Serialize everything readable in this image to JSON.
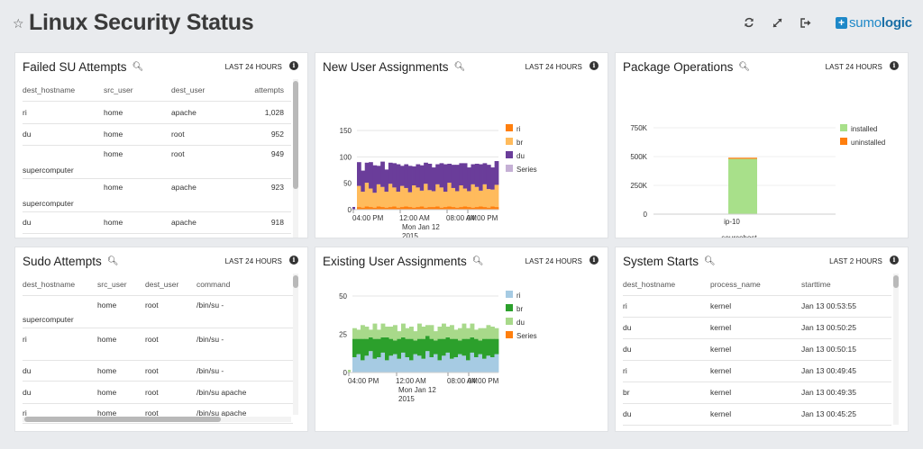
{
  "header": {
    "title": "Linux Security Status",
    "star_icon": "star-icon",
    "refresh_icon": "refresh-icon",
    "expand_icon": "expand-icon",
    "exit_icon": "exit-icon",
    "logo": {
      "prefix": "sumo",
      "suffix": "logic"
    }
  },
  "panels": {
    "failed_su": {
      "title": "Failed SU Attempts",
      "range": "LAST 24 HOURS",
      "columns": [
        "dest_hostname",
        "src_user",
        "dest_user",
        "attempts"
      ],
      "rows": [
        [
          "ri",
          "home",
          "apache",
          "1,028"
        ],
        [
          "du",
          "home",
          "root",
          "952"
        ],
        [
          "supercomputer",
          "home",
          "root",
          "949"
        ],
        [
          "supercomputer",
          "home",
          "apache",
          "923"
        ],
        [
          "du",
          "home",
          "apache",
          "918"
        ]
      ]
    },
    "new_user": {
      "title": "New User Assignments",
      "range": "LAST 24 HOURS",
      "legend": [
        "ri",
        "br",
        "du",
        "Series"
      ]
    },
    "package_ops": {
      "title": "Package Operations",
      "range": "LAST 24 HOURS",
      "legend": [
        "installed",
        "uninstalled"
      ]
    },
    "sudo": {
      "title": "Sudo Attempts",
      "range": "LAST 24 HOURS",
      "columns": [
        "dest_hostname",
        "src_user",
        "dest_user",
        "command"
      ],
      "rows": [
        [
          "supercomputer",
          "home",
          "root",
          "/bin/su -"
        ],
        [
          "ri",
          "home",
          "root",
          "/bin/su -"
        ],
        [
          "du",
          "home",
          "root",
          "/bin/su -"
        ],
        [
          "du",
          "home",
          "root",
          "/bin/su apache"
        ],
        [
          "ri",
          "home",
          "root",
          "/bin/su apache"
        ]
      ]
    },
    "existing_user": {
      "title": "Existing User Assignments",
      "range": "LAST 24 HOURS",
      "legend": [
        "ri",
        "br",
        "du",
        "Series"
      ]
    },
    "system_starts": {
      "title": "System Starts",
      "range": "LAST 2 HOURS",
      "columns": [
        "dest_hostname",
        "process_name",
        "starttime"
      ],
      "rows": [
        [
          "ri",
          "kernel",
          "Jan 13 00:53:55"
        ],
        [
          "du",
          "kernel",
          "Jan 13 00:50:25"
        ],
        [
          "du",
          "kernel",
          "Jan 13 00:50:15"
        ],
        [
          "ri",
          "kernel",
          "Jan 13 00:49:45"
        ],
        [
          "br",
          "kernel",
          "Jan 13 00:49:35"
        ],
        [
          "du",
          "kernel",
          "Jan 13 00:45:25"
        ]
      ]
    }
  },
  "colors": {
    "ri_orange": "#ff7f0e",
    "br_light_orange": "#ffbb5c",
    "du_purple": "#6a3d9a",
    "series_lavender": "#c5b0d5",
    "ri_light_blue": "#a6cbe3",
    "br_green": "#2ca02c",
    "du_light_green": "#a8d98a",
    "installed": "#a8e08a",
    "uninstalled": "#ff7f0e"
  },
  "chart_data": [
    {
      "type": "area",
      "title": "New User Assignments",
      "stacked": true,
      "x_ticks": [
        "04:00 PM",
        "12:00 AM",
        "08:00 AM",
        "04:00 PM"
      ],
      "x_date_label": [
        "Mon Jan 12",
        "2015"
      ],
      "y_ticks": [
        0,
        50,
        100,
        150
      ],
      "ylim": [
        0,
        150
      ],
      "series": [
        {
          "name": "ri",
          "values": [
            5,
            4,
            6,
            5,
            4,
            6,
            5,
            4,
            5,
            6,
            4,
            5,
            6,
            5,
            4,
            5,
            6,
            4,
            5,
            5,
            6,
            4,
            5,
            6,
            5,
            4,
            5,
            6,
            5,
            4,
            5,
            6,
            5,
            4,
            6,
            5
          ]
        },
        {
          "name": "br",
          "values": [
            40,
            30,
            45,
            35,
            28,
            42,
            38,
            30,
            44,
            36,
            30,
            40,
            35,
            28,
            42,
            37,
            30,
            45,
            32,
            30,
            42,
            38,
            29,
            45,
            36,
            31,
            41,
            34,
            30,
            44,
            38,
            30,
            43,
            35,
            32,
            42
          ]
        },
        {
          "name": "du",
          "values": [
            45,
            40,
            38,
            50,
            52,
            35,
            48,
            42,
            40,
            46,
            52,
            38,
            45,
            50,
            36,
            44,
            48,
            40,
            50,
            45,
            38,
            46,
            52,
            36,
            44,
            50,
            42,
            48,
            45,
            38,
            44,
            50,
            40,
            46,
            42,
            45
          ]
        },
        {
          "name": "Series",
          "values": [
            0,
            0,
            0,
            0,
            0,
            0,
            0,
            0,
            0,
            0,
            0,
            0,
            0,
            0,
            0,
            0,
            0,
            0,
            0,
            0,
            0,
            0,
            0,
            0,
            0,
            0,
            0,
            0,
            0,
            0,
            0,
            0,
            0,
            0,
            0,
            0
          ]
        }
      ]
    },
    {
      "type": "bar",
      "title": "Package Operations",
      "stacked": true,
      "categories": [
        "ip-10"
      ],
      "xlabel": "sourcehost",
      "y_ticks": [
        "0",
        "250K",
        "500K",
        "750K"
      ],
      "ylim": [
        0,
        750000
      ],
      "series": [
        {
          "name": "installed",
          "values": [
            480000
          ]
        },
        {
          "name": "uninstalled",
          "values": [
            10000
          ]
        }
      ]
    },
    {
      "type": "area",
      "title": "Existing User Assignments",
      "stacked": true,
      "x_ticks": [
        "04:00 PM",
        "12:00 AM",
        "08:00 AM",
        "04:00 PM"
      ],
      "x_date_label": [
        "Mon Jan 12",
        "2015"
      ],
      "y_ticks": [
        0,
        25,
        50
      ],
      "ylim": [
        0,
        50
      ],
      "series": [
        {
          "name": "ri",
          "values": [
            10,
            12,
            8,
            11,
            14,
            9,
            10,
            13,
            8,
            11,
            12,
            9,
            13,
            10,
            8,
            12,
            11,
            9,
            14,
            10,
            12,
            8,
            11,
            13,
            9,
            10,
            12,
            11,
            8,
            13,
            10,
            12,
            9,
            11,
            10,
            12
          ]
        },
        {
          "name": "br",
          "values": [
            12,
            10,
            14,
            11,
            9,
            13,
            12,
            10,
            15,
            11,
            9,
            13,
            10,
            12,
            14,
            9,
            11,
            13,
            10,
            12,
            9,
            14,
            11,
            10,
            13,
            12,
            9,
            11,
            14,
            10,
            12,
            9,
            13,
            11,
            12,
            10
          ]
        },
        {
          "name": "du",
          "values": [
            7,
            6,
            9,
            8,
            5,
            10,
            6,
            9,
            7,
            8,
            10,
            5,
            9,
            7,
            8,
            6,
            10,
            8,
            7,
            9,
            6,
            8,
            10,
            7,
            9,
            6,
            8,
            10,
            7,
            9,
            6,
            8,
            7,
            9,
            8,
            7
          ]
        },
        {
          "name": "Series",
          "values": [
            0,
            0,
            0,
            0,
            0,
            0,
            0,
            0,
            0,
            0,
            0,
            0,
            0,
            0,
            0,
            0,
            0,
            0,
            0,
            0,
            0,
            0,
            0,
            0,
            0,
            0,
            0,
            0,
            0,
            0,
            0,
            0,
            0,
            0,
            0,
            0
          ]
        }
      ]
    }
  ]
}
